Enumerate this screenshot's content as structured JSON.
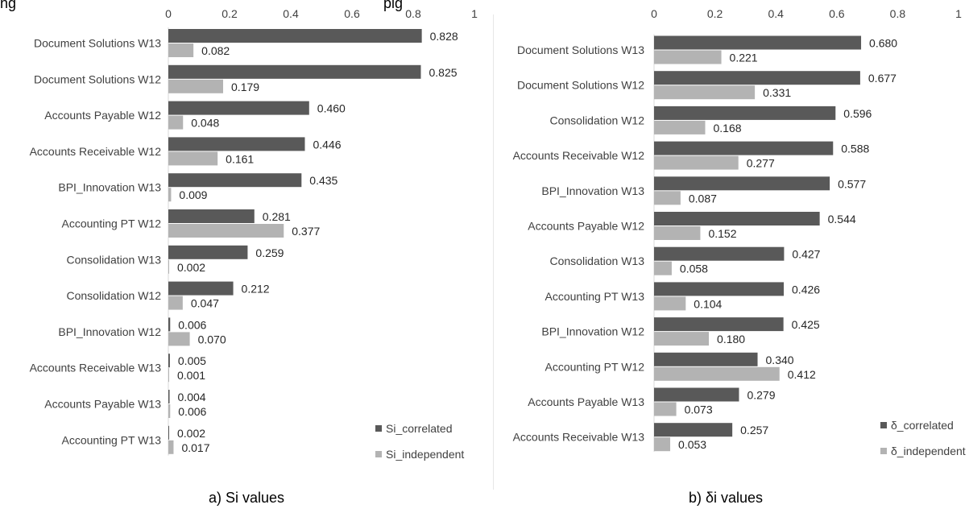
{
  "header_text": "ng",
  "header_text_2": "pig",
  "colors": {
    "correlated": "#595959",
    "independent": "#b3b3b3",
    "text": "#404040"
  },
  "chart_data": [
    {
      "type": "bar",
      "orientation": "horizontal",
      "caption": "a) Si values",
      "xlim": [
        0,
        1
      ],
      "xticks": [
        0,
        0.2,
        0.4,
        0.6,
        0.8,
        1
      ],
      "xtick_labels": [
        "0",
        "0.2",
        "0.4",
        "0.6",
        "0.8",
        "1"
      ],
      "grid": false,
      "legend_position": "bottom-right",
      "categories": [
        "Document Solutions W13",
        "Document Solutions W12",
        "Accounts Payable W12",
        "Accounts Receivable W12",
        "BPI_Innovation W13",
        "Accounting PT W12",
        "Consolidation W13",
        "Consolidation W12",
        "BPI_Innovation W12",
        "Accounts Receivable W13",
        "Accounts Payable W13",
        "Accounting PT W13"
      ],
      "series": [
        {
          "name": "Si_correlated",
          "values": [
            0.828,
            0.825,
            0.46,
            0.446,
            0.435,
            0.281,
            0.259,
            0.212,
            0.006,
            0.005,
            0.004,
            0.002
          ],
          "labels": [
            "0.828",
            "0.825",
            "0.460",
            "0.446",
            "0.435",
            "0.281",
            "0.259",
            "0.212",
            "0.006",
            "0.005",
            "0.004",
            "0.002"
          ]
        },
        {
          "name": "Si_independent",
          "values": [
            0.082,
            0.179,
            0.048,
            0.161,
            0.009,
            0.377,
            0.002,
            0.047,
            0.07,
            0.001,
            0.006,
            0.017
          ],
          "labels": [
            "0.082",
            "0.179",
            "0.048",
            "0.161",
            "0.009",
            "0.377",
            "0.002",
            "0.047",
            "0.070",
            "0.001",
            "0.006",
            "0.017"
          ]
        }
      ]
    },
    {
      "type": "bar",
      "orientation": "horizontal",
      "caption": "b) δi values",
      "xlim": [
        0,
        1
      ],
      "xticks": [
        0,
        0.2,
        0.4,
        0.6,
        0.8,
        1
      ],
      "xtick_labels": [
        "0",
        "0.2",
        "0.4",
        "0.6",
        "0.8",
        "1"
      ],
      "grid": false,
      "legend_position": "bottom-right",
      "categories": [
        "Document Solutions W13",
        "Document Solutions W12",
        "Consolidation W12",
        "Accounts Receivable W12",
        "BPI_Innovation W13",
        "Accounts Payable W12",
        "Consolidation W13",
        "Accounting PT W13",
        "BPI_Innovation W12",
        "Accounting PT W12",
        "Accounts Payable W13",
        "Accounts Receivable W13"
      ],
      "series": [
        {
          "name": "δ_correlated",
          "values": [
            0.68,
            0.677,
            0.596,
            0.588,
            0.577,
            0.544,
            0.427,
            0.426,
            0.425,
            0.34,
            0.279,
            0.257
          ],
          "labels": [
            "0.680",
            "0.677",
            "0.596",
            "0.588",
            "0.577",
            "0.544",
            "0.427",
            "0.426",
            "0.425",
            "0.340",
            "0.279",
            "0.257"
          ]
        },
        {
          "name": "δ_independent",
          "values": [
            0.221,
            0.331,
            0.168,
            0.277,
            0.087,
            0.152,
            0.058,
            0.104,
            0.18,
            0.412,
            0.073,
            0.053
          ],
          "labels": [
            "0.221",
            "0.331",
            "0.168",
            "0.277",
            "0.087",
            "0.152",
            "0.058",
            "0.104",
            "0.180",
            "0.412",
            "0.073",
            "0.053"
          ]
        }
      ]
    }
  ]
}
